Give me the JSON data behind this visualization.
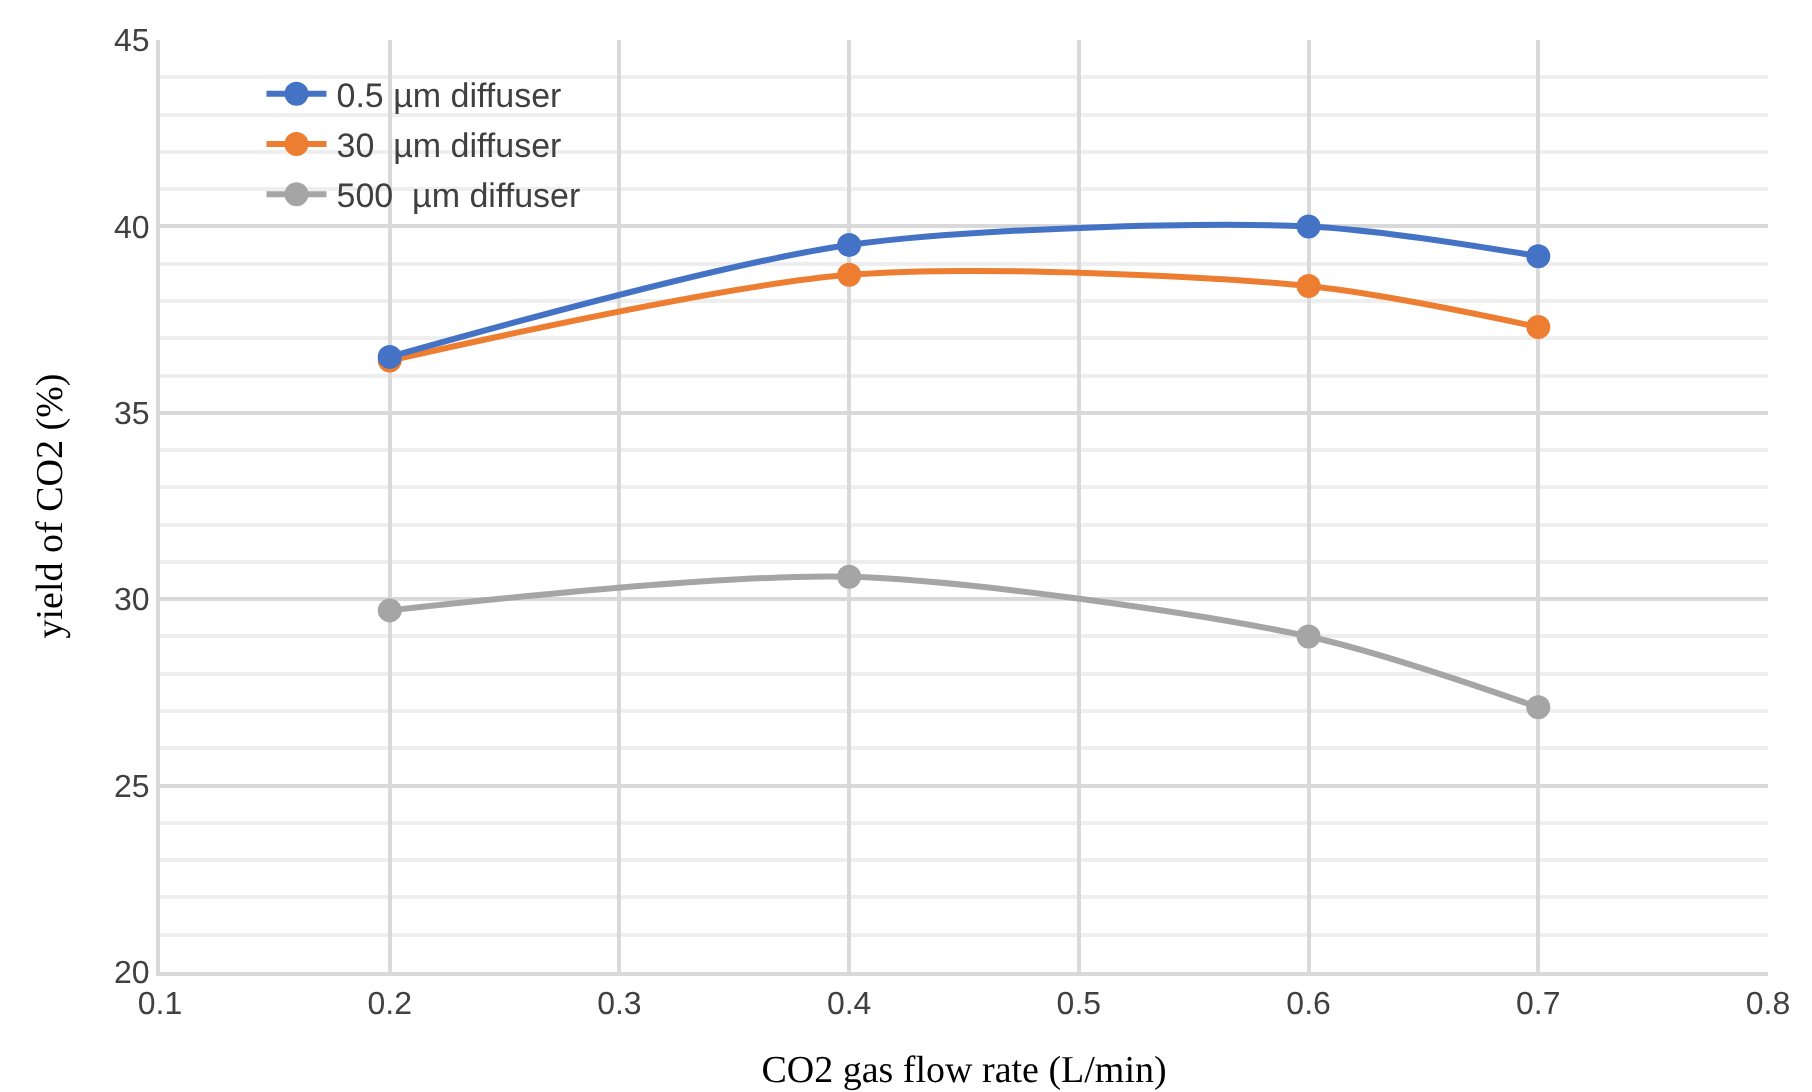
{
  "chart_data": {
    "type": "line",
    "xlabel": "CO2 gas flow rate (L/min)",
    "ylabel": "yield of CO2 (%)",
    "x": [
      0.2,
      0.4,
      0.6,
      0.7
    ],
    "series": [
      {
        "name": "0.5 µm diffuser",
        "color": "#4472c4",
        "values": [
          36.5,
          39.5,
          40.0,
          39.2
        ]
      },
      {
        "name": "30  µm diffuser",
        "color": "#ed7d31",
        "values": [
          36.4,
          38.7,
          38.4,
          37.3
        ]
      },
      {
        "name": "500  µm diffuser",
        "color": "#a5a5a5",
        "values": [
          29.7,
          30.6,
          29.0,
          27.1
        ]
      }
    ],
    "xlim": [
      0.1,
      0.8
    ],
    "xticks": [
      0.1,
      0.2,
      0.3,
      0.4,
      0.5,
      0.6,
      0.7,
      0.8
    ],
    "ylim": [
      20,
      45
    ],
    "yticks": [
      20,
      25,
      30,
      35,
      40,
      45
    ],
    "grid": true,
    "legend": "top left",
    "marker": "circle",
    "line_style": "solid"
  }
}
